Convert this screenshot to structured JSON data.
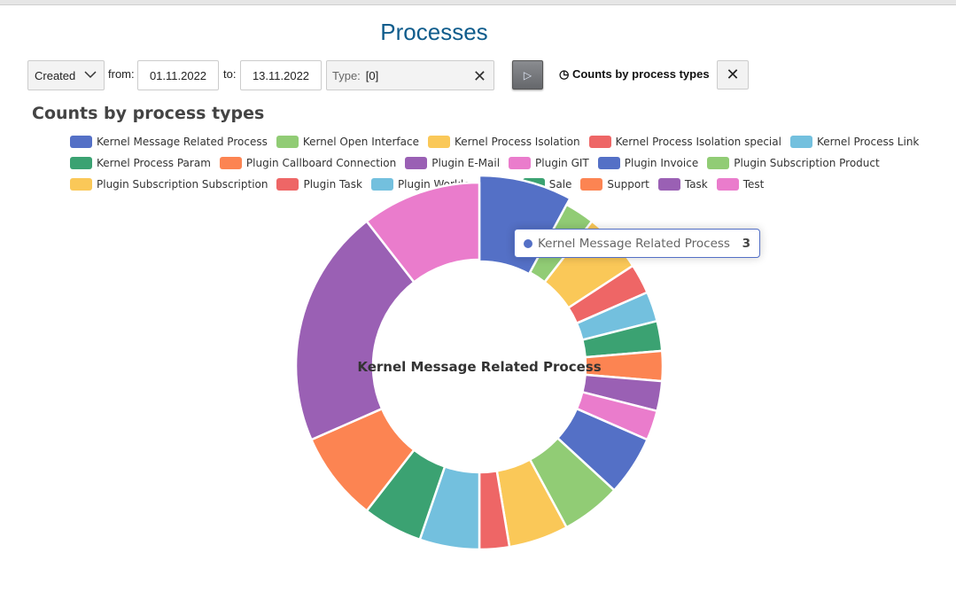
{
  "header": {
    "title": "Processes"
  },
  "filters": {
    "date_mode": "Created",
    "from_label": "from:",
    "from_value": "01.11.2022",
    "to_label": "to:",
    "to_value": "13.11.2022",
    "type_label": "Type:",
    "type_value": "[0]",
    "clear_icon": "close-icon",
    "run_icon": "play-icon",
    "chart_tab_icon": "pie-chart-icon",
    "chart_tab_label": "Counts by process types",
    "close_icon": "close-icon"
  },
  "chart_data": {
    "type": "pie",
    "variant": "donut",
    "title": "Counts by process types",
    "legend_position": "top",
    "center_label": "Kernel Message Related Process",
    "tooltip": {
      "name": "Kernel Message Related Process",
      "value": "3"
    },
    "categories": [
      "Kernel Message Related Process",
      "Kernel Open Interface",
      "Kernel Process Isolation",
      "Kernel Process Isolation special",
      "Kernel Process Link",
      "Kernel Process Param",
      "Plugin Callboard Connection",
      "Plugin E-Mail",
      "Plugin GIT",
      "Plugin Invoice",
      "Plugin Subscription Product",
      "Plugin Subscription Subscription",
      "Plugin Task",
      "Plugin Workload Work",
      "Sale",
      "Support",
      "Task",
      "Test"
    ],
    "values": [
      3,
      1,
      2,
      1,
      1,
      1,
      1,
      1,
      1,
      2,
      2,
      2,
      1,
      2,
      2,
      3,
      8,
      4
    ],
    "colors": [
      "#5470c6",
      "#91cc75",
      "#fac858",
      "#ee6666",
      "#73c0de",
      "#3ba272",
      "#fc8452",
      "#9a60b4",
      "#ea7ccc",
      "#5470c6",
      "#91cc75",
      "#fac858",
      "#ee6666",
      "#73c0de",
      "#3ba272",
      "#fc8452",
      "#9a60b4",
      "#ea7ccc"
    ],
    "highlighted": "Kernel Message Related Process"
  }
}
